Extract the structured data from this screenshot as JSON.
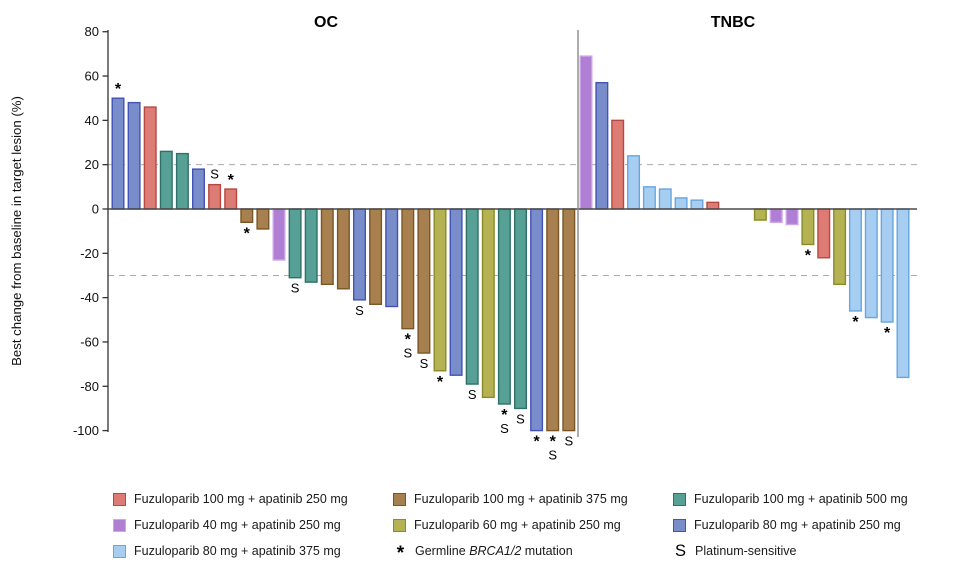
{
  "chart_data": {
    "type": "bar",
    "kind": "waterfall",
    "ylabel": "Best change from baseline in target lesion (%)",
    "ylim": [
      -100,
      80
    ],
    "yticks": [
      80,
      60,
      40,
      20,
      0,
      -20,
      -40,
      -60,
      -80,
      -100
    ],
    "reference_lines": [
      20,
      -30
    ],
    "grid": "off",
    "annotation_codes": {
      "star": "Germline BRCA1/2 mutation",
      "S": "Platinum-sensitive"
    },
    "colors": {
      "f100a250": {
        "fill": "#DD7C74",
        "stroke": "#B8473F"
      },
      "f100a375": {
        "fill": "#A8804F",
        "stroke": "#7A5624"
      },
      "f100a500": {
        "fill": "#57A096",
        "stroke": "#2F7168"
      },
      "f40a250": {
        "fill": "#B07FD4",
        "stroke": "#CBA6EA"
      },
      "f60a250": {
        "fill": "#B5B253",
        "stroke": "#8A8A28"
      },
      "f80a250": {
        "fill": "#7A8DCB",
        "stroke": "#4153B4"
      },
      "f80a375": {
        "fill": "#A7CDF0",
        "stroke": "#64A7E2"
      }
    },
    "groups": [
      {
        "name": "OC",
        "bars": [
          {
            "v": 50,
            "c": "f80a250",
            "a": "star"
          },
          {
            "v": 48,
            "c": "f80a250",
            "a": ""
          },
          {
            "v": 46,
            "c": "f100a250",
            "a": ""
          },
          {
            "v": 26,
            "c": "f100a500",
            "a": ""
          },
          {
            "v": 25,
            "c": "f100a500",
            "a": ""
          },
          {
            "v": 18,
            "c": "f80a250",
            "a": ""
          },
          {
            "v": 11,
            "c": "f100a250",
            "a": "S"
          },
          {
            "v": 9,
            "c": "f100a250",
            "a": "star"
          },
          {
            "v": -6,
            "c": "f100a375",
            "a": "star"
          },
          {
            "v": -9,
            "c": "f100a375",
            "a": ""
          },
          {
            "v": -23,
            "c": "f40a250",
            "a": ""
          },
          {
            "v": -31,
            "c": "f100a500",
            "a": "S"
          },
          {
            "v": -33,
            "c": "f100a500",
            "a": ""
          },
          {
            "v": -34,
            "c": "f100a375",
            "a": ""
          },
          {
            "v": -36,
            "c": "f100a375",
            "a": ""
          },
          {
            "v": -41,
            "c": "f80a250",
            "a": "S"
          },
          {
            "v": -43,
            "c": "f100a375",
            "a": ""
          },
          {
            "v": -44,
            "c": "f80a250",
            "a": ""
          },
          {
            "v": -54,
            "c": "f100a375",
            "a": "starS"
          },
          {
            "v": -65,
            "c": "f100a375",
            "a": "S"
          },
          {
            "v": -73,
            "c": "f60a250",
            "a": "star"
          },
          {
            "v": -75,
            "c": "f80a250",
            "a": ""
          },
          {
            "v": -79,
            "c": "f100a500",
            "a": "S"
          },
          {
            "v": -85,
            "c": "f60a250",
            "a": ""
          },
          {
            "v": -88,
            "c": "f100a500",
            "a": "starS"
          },
          {
            "v": -90,
            "c": "f100a500",
            "a": "S"
          },
          {
            "v": -100,
            "c": "f80a250",
            "a": "star"
          },
          {
            "v": -100,
            "c": "f100a375",
            "a": "starS"
          },
          {
            "v": -100,
            "c": "f100a375",
            "a": "S"
          }
        ]
      },
      {
        "name": "TNBC",
        "bars": [
          {
            "v": 69,
            "c": "f40a250",
            "a": ""
          },
          {
            "v": 57,
            "c": "f80a250",
            "a": ""
          },
          {
            "v": 40,
            "c": "f100a250",
            "a": ""
          },
          {
            "v": 24,
            "c": "f80a375",
            "a": ""
          },
          {
            "v": 10,
            "c": "f80a375",
            "a": ""
          },
          {
            "v": 9,
            "c": "f80a375",
            "a": ""
          },
          {
            "v": 5,
            "c": "f80a375",
            "a": ""
          },
          {
            "v": 4,
            "c": "f80a375",
            "a": ""
          },
          {
            "v": 3,
            "c": "f100a250",
            "a": ""
          },
          {
            "v": 0,
            "c": "",
            "a": ""
          },
          {
            "v": 0,
            "c": "",
            "a": ""
          },
          {
            "v": -5,
            "c": "f60a250",
            "a": ""
          },
          {
            "v": -6,
            "c": "f40a250",
            "a": ""
          },
          {
            "v": -7,
            "c": "f40a250",
            "a": ""
          },
          {
            "v": -16,
            "c": "f60a250",
            "a": "star"
          },
          {
            "v": -22,
            "c": "f100a250",
            "a": ""
          },
          {
            "v": -34,
            "c": "f60a250",
            "a": ""
          },
          {
            "v": -46,
            "c": "f80a375",
            "a": "star"
          },
          {
            "v": -49,
            "c": "f80a375",
            "a": ""
          },
          {
            "v": -51,
            "c": "f80a375",
            "a": "star"
          },
          {
            "v": -76,
            "c": "f80a375",
            "a": ""
          }
        ]
      }
    ],
    "legend": {
      "items": [
        {
          "type": "swatch",
          "color": "f100a250",
          "label": "Fuzuloparib 100 mg + apatinib 250 mg"
        },
        {
          "type": "swatch",
          "color": "f40a250",
          "label": "Fuzuloparib 40 mg + apatinib 250 mg"
        },
        {
          "type": "swatch",
          "color": "f80a375",
          "label": "Fuzuloparib 80 mg + apatinib 375 mg"
        },
        {
          "type": "swatch",
          "color": "f100a375",
          "label": "Fuzuloparib 100 mg + apatinib 375 mg"
        },
        {
          "type": "swatch",
          "color": "f60a250",
          "label": "Fuzuloparib 60 mg + apatinib 250 mg"
        },
        {
          "type": "symbol",
          "symbol": "*",
          "label_prefix": "Germline ",
          "label_italic": "BRCA1/2",
          "label_suffix": " mutation"
        },
        {
          "type": "swatch",
          "color": "f100a500",
          "label": "Fuzuloparib 100 mg + apatinib 500 mg"
        },
        {
          "type": "swatch",
          "color": "f80a250",
          "label": "Fuzuloparib 80 mg + apatinib 250 mg"
        },
        {
          "type": "symbol",
          "symbol": "S",
          "label": "Platinum-sensitive"
        }
      ]
    }
  }
}
